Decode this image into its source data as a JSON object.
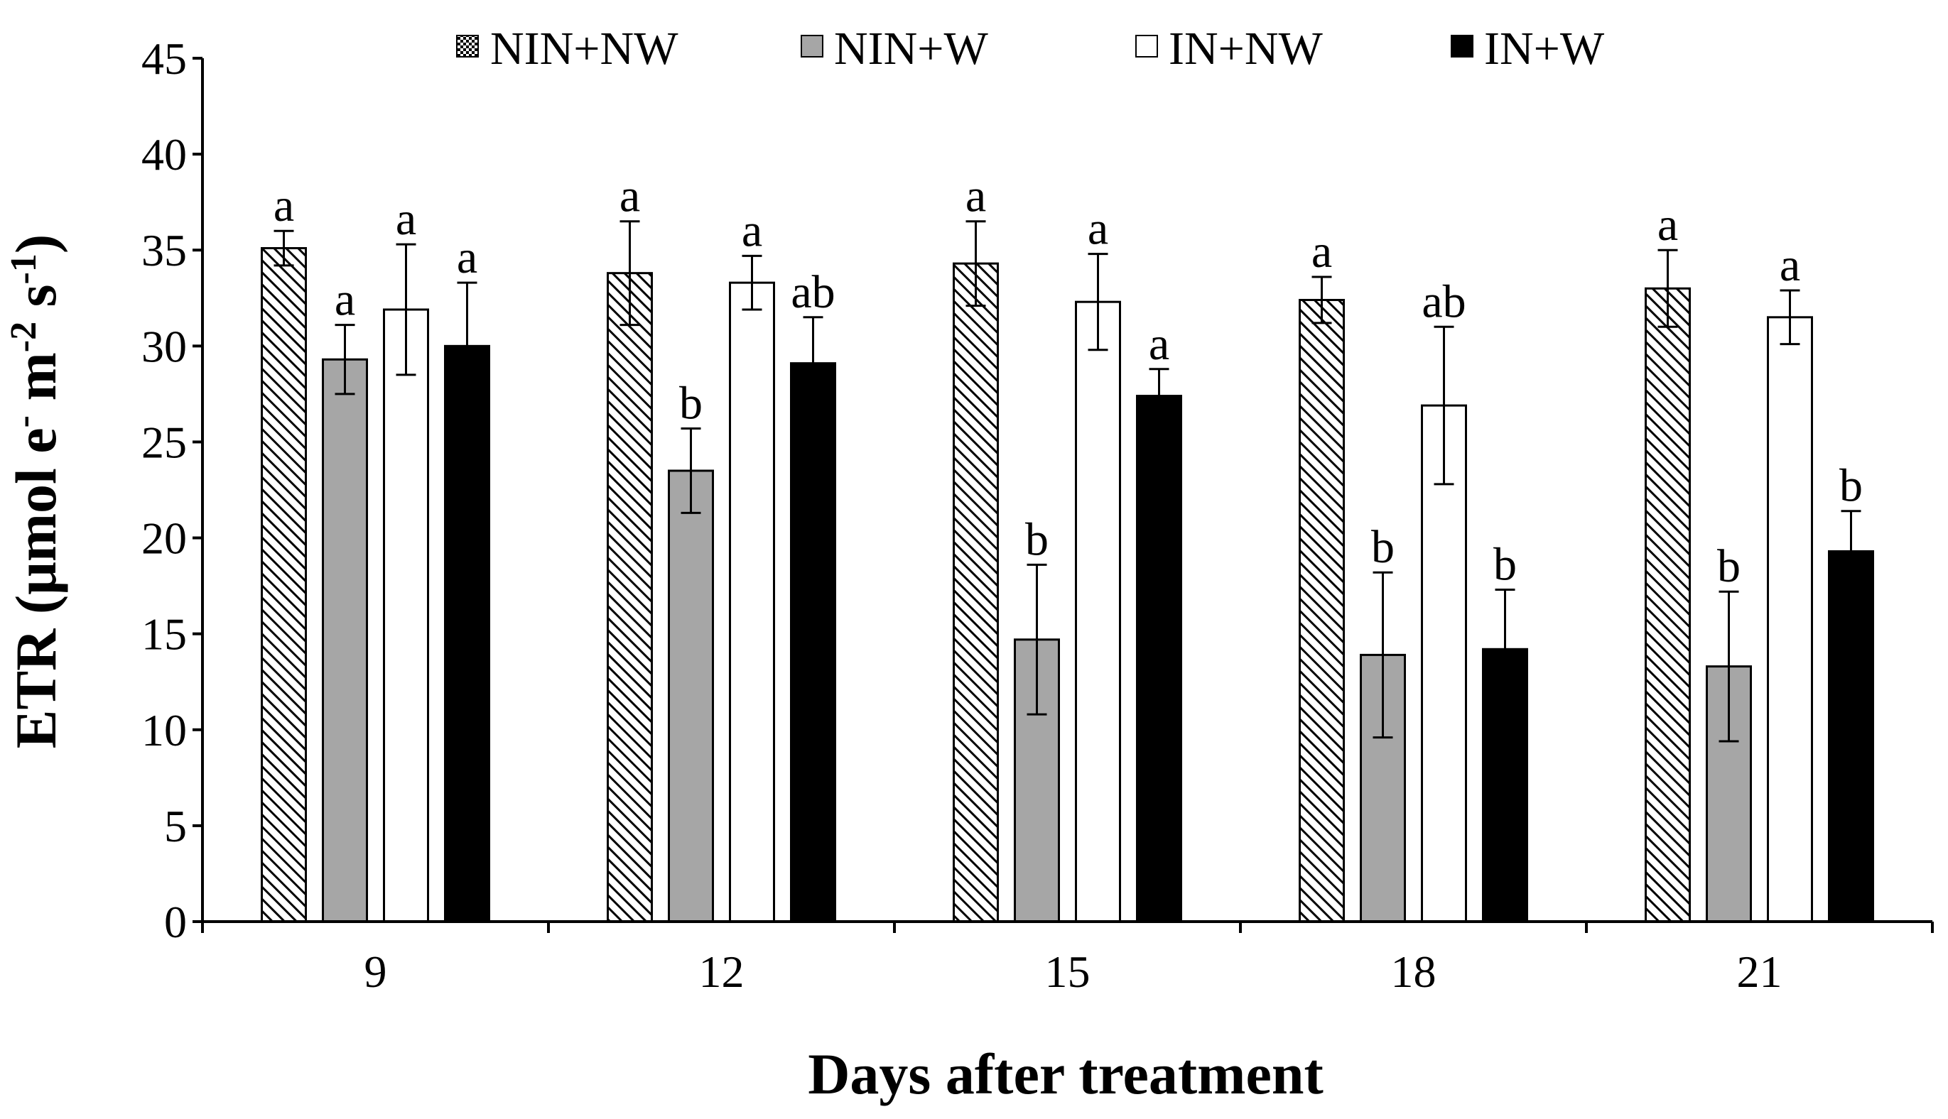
{
  "chart_data": {
    "type": "bar",
    "title": "",
    "xlabel": "Days after treatment",
    "ylabel": "ETR (μmol e- m-2 s-1)",
    "ylabel_parts": {
      "main": "ETR (μmol e",
      "sup1": "-",
      "mid": " m",
      "sup2": "-2",
      "mid2": " s",
      "sup3": "-1",
      "end": ")"
    },
    "ylim": [
      0,
      45
    ],
    "yticks": [
      "0",
      "5",
      "10",
      "15",
      "20",
      "25",
      "30",
      "35",
      "40",
      "45"
    ],
    "ytick_values": [
      0,
      5,
      10,
      15,
      20,
      25,
      30,
      35,
      40,
      45
    ],
    "grid": false,
    "legend_position": "top",
    "categories": [
      "9",
      "12",
      "15",
      "18",
      "21"
    ],
    "series": [
      {
        "name": "NIN+NW",
        "pattern": "hatch",
        "values": [
          35.1,
          33.8,
          34.3,
          32.4,
          33.0
        ],
        "errors": [
          0.9,
          2.7,
          2.2,
          1.2,
          2.0
        ],
        "letters": [
          "a",
          "a",
          "a",
          "a",
          "a"
        ]
      },
      {
        "name": "NIN+W",
        "pattern": "gray",
        "values": [
          29.3,
          23.5,
          14.7,
          13.9,
          13.3
        ],
        "errors": [
          1.8,
          2.2,
          3.9,
          4.3,
          3.9
        ],
        "letters": [
          "a",
          "b",
          "b",
          "b",
          "b"
        ]
      },
      {
        "name": "IN+NW",
        "pattern": "white",
        "values": [
          31.9,
          33.3,
          32.3,
          26.9,
          31.5
        ],
        "errors": [
          3.4,
          1.4,
          2.5,
          4.1,
          1.4
        ],
        "letters": [
          "a",
          "a",
          "a",
          "ab",
          "a"
        ]
      },
      {
        "name": "IN+W",
        "pattern": "black",
        "values": [
          30.0,
          29.1,
          27.4,
          14.2,
          19.3
        ],
        "errors": [
          3.3,
          2.4,
          1.4,
          3.1,
          2.1
        ],
        "letters": [
          "a",
          "ab",
          "a",
          "b",
          "b"
        ]
      }
    ],
    "colors": {
      "gray": "#a6a6a6",
      "black": "#000000",
      "white": "#ffffff",
      "axis": "#000000"
    }
  }
}
